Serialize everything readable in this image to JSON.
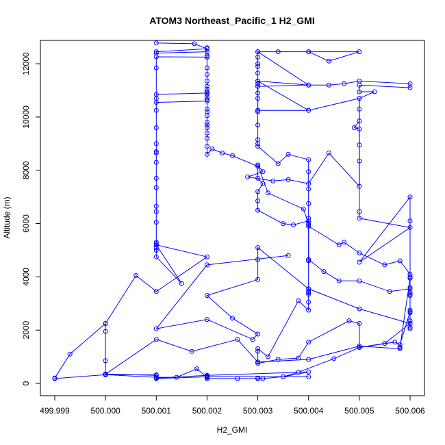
{
  "chart_data": {
    "type": "line",
    "title": "ATOM3 Northeast_Pacific_1 H2_GMI",
    "xlabel": "H2_GMI",
    "ylabel": "Altitude (m)",
    "xlim": [
      499.999,
      500.006
    ],
    "ylim": [
      0,
      12800
    ],
    "xticks": [
      499.999,
      500.0,
      500.001,
      500.002,
      500.003,
      500.004,
      500.005,
      500.006
    ],
    "xtick_labels": [
      "499.999",
      "500.000",
      "500.001",
      "500.002",
      "500.003",
      "500.004",
      "500.005",
      "500.006"
    ],
    "yticks": [
      0,
      2000,
      4000,
      6000,
      8000,
      10000,
      12000
    ],
    "ytick_labels": [
      "0",
      "2000",
      "4000",
      "6000",
      "8000",
      "10000",
      "12000"
    ],
    "grid": false,
    "line_color": "#0000ff",
    "marker": "open-circle",
    "series": [
      {
        "values": [
          [
            500.001,
            12780
          ],
          [
            500.00175,
            12750
          ],
          [
            500.002,
            12560
          ],
          [
            500.001,
            12450
          ],
          [
            500.001,
            12400
          ],
          [
            500.002,
            12450
          ],
          [
            500.002,
            12300
          ],
          [
            500.002,
            12250
          ],
          [
            500.001,
            12260
          ],
          [
            500.001,
            11850
          ],
          [
            500.001,
            10700
          ],
          [
            500.001,
            10550
          ],
          [
            500.002,
            10600
          ],
          [
            500.002,
            10900
          ],
          [
            500.001,
            10850
          ],
          [
            500.001,
            10250
          ],
          [
            500.001,
            9600
          ],
          [
            500.001,
            9000
          ],
          [
            500.001,
            8700
          ],
          [
            500.001,
            8650
          ],
          [
            500.001,
            8300
          ],
          [
            500.001,
            7700
          ],
          [
            500.001,
            7350
          ],
          [
            500.001,
            6650
          ],
          [
            500.001,
            6450
          ],
          [
            500.001,
            6050
          ],
          [
            500.001,
            5300
          ],
          [
            500.001,
            5250
          ],
          [
            500.001,
            5100
          ],
          [
            500.001,
            5000
          ],
          [
            500.001,
            4750
          ],
          [
            500.0015,
            3750
          ],
          [
            500.001,
            5200
          ],
          [
            500.002,
            4750
          ],
          [
            500.001,
            3450
          ],
          [
            500.0006,
            4050
          ],
          [
            500.0,
            2250
          ],
          [
            500.0,
            1950
          ],
          [
            500.0,
            850
          ],
          [
            500.0,
            350
          ],
          [
            500.0,
            320
          ],
          [
            500.001,
            320
          ],
          [
            500.001,
            180
          ],
          [
            500.002,
            250
          ],
          [
            500.004,
            250
          ],
          [
            500.0035,
            250
          ],
          [
            500.0031,
            180
          ],
          [
            500.003,
            200
          ],
          [
            500.003,
            180
          ],
          [
            500.0026,
            180
          ],
          [
            500.002,
            180
          ],
          [
            500.002,
            230
          ],
          [
            500.002,
            300
          ],
          [
            500.002,
            280
          ],
          [
            500.002,
            220
          ],
          [
            500.0018,
            550
          ],
          [
            500.0014,
            230
          ],
          [
            500.001,
            230
          ],
          [
            500.0,
            330
          ],
          [
            499.999,
            180
          ],
          [
            499.999,
            200
          ],
          [
            499.9993,
            1100
          ],
          [
            500.0,
            2250
          ]
        ]
      },
      {
        "values": [
          [
            500.002,
            12600
          ],
          [
            500.002,
            11850
          ],
          [
            500.002,
            11600
          ],
          [
            500.002,
            11350
          ],
          [
            500.002,
            11150
          ],
          [
            500.002,
            11050
          ],
          [
            500.002,
            10950
          ],
          [
            500.002,
            10850
          ],
          [
            500.002,
            10750
          ],
          [
            500.002,
            10650
          ],
          [
            500.002,
            10300
          ],
          [
            500.002,
            10200
          ],
          [
            500.002,
            10050
          ],
          [
            500.002,
            9800
          ],
          [
            500.002,
            9700
          ],
          [
            500.002,
            9600
          ],
          [
            500.002,
            9400
          ],
          [
            500.002,
            9200
          ],
          [
            500.002,
            8900
          ],
          [
            500.002,
            8600
          ],
          [
            500.0021,
            8800
          ],
          [
            500.0023,
            8650
          ],
          [
            500.0025,
            8550
          ],
          [
            500.003,
            8150
          ],
          [
            500.003,
            7700
          ],
          [
            500.0031,
            7500
          ],
          [
            500.003,
            7200
          ],
          [
            500.003,
            6850
          ],
          [
            500.003,
            6500
          ],
          [
            500.0035,
            6000
          ],
          [
            500.0037,
            5950
          ],
          [
            500.004,
            6100
          ],
          [
            500.004,
            5900
          ],
          [
            500.0046,
            5200
          ],
          [
            500.0047,
            5300
          ],
          [
            500.005,
            4900
          ],
          [
            500.0055,
            4450
          ],
          [
            500.0058,
            4600
          ],
          [
            500.006,
            4100
          ],
          [
            500.006,
            3950
          ],
          [
            500.006,
            3600
          ],
          [
            500.006,
            3400
          ],
          [
            500.006,
            3300
          ],
          [
            500.006,
            2750
          ],
          [
            500.006,
            2650
          ],
          [
            500.006,
            2350
          ],
          [
            500.006,
            2100
          ],
          [
            500.006,
            2050
          ]
        ]
      },
      {
        "values": [
          [
            500.003,
            12450
          ],
          [
            500.003,
            12250
          ],
          [
            500.003,
            12000
          ],
          [
            500.003,
            11900
          ],
          [
            500.003,
            11650
          ],
          [
            500.003,
            11350
          ],
          [
            500.003,
            11250
          ],
          [
            500.003,
            11150
          ],
          [
            500.003,
            10900
          ],
          [
            500.003,
            10700
          ],
          [
            500.003,
            10250
          ],
          [
            500.003,
            10200
          ],
          [
            500.003,
            9700
          ],
          [
            500.003,
            9150
          ],
          [
            500.003,
            9000
          ],
          [
            500.003,
            8900
          ],
          [
            500.0034,
            8250
          ],
          [
            500.0036,
            8600
          ],
          [
            500.004,
            8400
          ],
          [
            500.004,
            7950
          ],
          [
            500.004,
            7300
          ],
          [
            500.004,
            6750
          ],
          [
            500.004,
            6200
          ],
          [
            500.004,
            5950
          ],
          [
            500.004,
            4650
          ],
          [
            500.004,
            4600
          ],
          [
            500.004,
            3550
          ],
          [
            500.004,
            3450
          ],
          [
            500.004,
            3400
          ],
          [
            500.004,
            3350
          ],
          [
            500.004,
            3050
          ],
          [
            500.004,
            2750
          ],
          [
            500.0038,
            3100
          ],
          [
            500.0032,
            1000
          ],
          [
            500.003,
            1300
          ],
          [
            500.003,
            1200
          ],
          [
            500.003,
            800
          ],
          [
            500.003,
            750
          ],
          [
            500.0034,
            900
          ],
          [
            500.0038,
            950
          ],
          [
            500.004,
            1550
          ],
          [
            500.0048,
            2350
          ],
          [
            500.005,
            2250
          ],
          [
            500.005,
            1350
          ],
          [
            500.0057,
            1550
          ],
          [
            500.0058,
            1450
          ],
          [
            500.006,
            2700
          ]
        ]
      },
      {
        "values": [
          [
            500.004,
            12450
          ],
          [
            500.005,
            12450
          ],
          [
            500.0044,
            12100
          ],
          [
            500.004,
            12450
          ],
          [
            500.0034,
            12450
          ],
          [
            500.003,
            12450
          ],
          [
            500.004,
            11200
          ],
          [
            500.0044,
            11200
          ],
          [
            500.0047,
            11250
          ],
          [
            500.005,
            11350
          ],
          [
            500.006,
            11250
          ],
          [
            500.006,
            11100
          ],
          [
            500.005,
            11200
          ],
          [
            500.005,
            10950
          ],
          [
            500.0053,
            10950
          ],
          [
            500.005,
            10700
          ],
          [
            500.005,
            10300
          ],
          [
            500.005,
            9850
          ],
          [
            500.0049,
            9600
          ],
          [
            500.005,
            9550
          ],
          [
            500.005,
            8950
          ],
          [
            500.005,
            8350
          ],
          [
            500.005,
            7400
          ],
          [
            500.0044,
            8650
          ],
          [
            500.004,
            7500
          ],
          [
            500.0036,
            7650
          ],
          [
            500.0033,
            7600
          ],
          [
            500.0028,
            7750
          ],
          [
            500.0031,
            7950
          ],
          [
            500.003,
            8200
          ],
          [
            500.0032,
            7150
          ],
          [
            500.0039,
            6550
          ],
          [
            500.004,
            6000
          ],
          [
            500.004,
            4650
          ],
          [
            500.0043,
            4200
          ],
          [
            500.0046,
            3850
          ],
          [
            500.005,
            3850
          ],
          [
            500.0056,
            3450
          ],
          [
            500.006,
            3550
          ],
          [
            500.006,
            3350
          ],
          [
            500.006,
            2250
          ]
        ]
      },
      {
        "values": [
          [
            500.004,
            10250
          ],
          [
            500.003,
            10250
          ],
          [
            500.003,
            11150
          ],
          [
            500.004,
            11200
          ],
          [
            500.003,
            11350
          ],
          [
            500.004,
            10250
          ],
          [
            500.005,
            10700
          ],
          [
            500.005,
            6450
          ],
          [
            500.005,
            6200
          ],
          [
            500.006,
            5850
          ],
          [
            500.005,
            4550
          ],
          [
            500.006,
            7000
          ],
          [
            500.006,
            6100
          ],
          [
            500.006,
            4000
          ],
          [
            500.006,
            3950
          ],
          [
            500.0058,
            1350
          ],
          [
            500.0058,
            1300
          ],
          [
            500.005,
            1400
          ],
          [
            500.004,
            900
          ],
          [
            500.003,
            800
          ],
          [
            500.0026,
            1650
          ],
          [
            500.0017,
            1200
          ],
          [
            500.001,
            1650
          ],
          [
            500.0,
            350
          ],
          [
            500.001,
            300
          ],
          [
            500.001,
            200
          ],
          [
            500.002,
            300
          ],
          [
            500.004,
            430
          ],
          [
            500.0035,
            250
          ],
          [
            500.0038,
            420
          ],
          [
            500.0045,
            930
          ],
          [
            500.005,
            1350
          ],
          [
            500.0055,
            1500
          ],
          [
            500.006,
            2250
          ],
          [
            500.005,
            2800
          ],
          [
            500.004,
            3550
          ],
          [
            500.003,
            5100
          ],
          [
            500.003,
            4650
          ],
          [
            500.003,
            3900
          ],
          [
            500.002,
            3300
          ],
          [
            500.0025,
            2450
          ],
          [
            500.003,
            1850
          ],
          [
            500.0029,
            1650
          ],
          [
            500.002,
            2400
          ],
          [
            500.001,
            2050
          ],
          [
            500.002,
            4450
          ],
          [
            500.0036,
            4800
          ]
        ]
      }
    ]
  }
}
